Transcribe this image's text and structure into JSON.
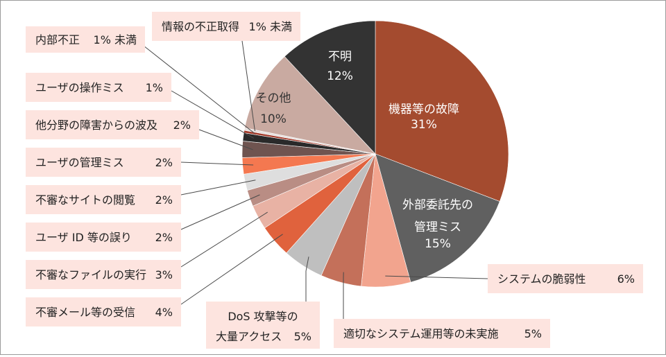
{
  "chart_data": {
    "type": "pie",
    "title": "",
    "start": "12 o'clock",
    "direction": "clockwise",
    "slices": [
      {
        "label": "機器等の故障",
        "value": 31,
        "value_label": "31%",
        "color": "#a44b2f",
        "label_placement": "inside",
        "text_color": "#ffffff"
      },
      {
        "label": "外部委託先の管理ミス",
        "value": 15,
        "value_label": "15%",
        "color": "#606060",
        "label_placement": "inside",
        "text_color": "#ffffff"
      },
      {
        "label": "システムの脆弱性",
        "value": 6,
        "value_label": "6%",
        "color": "#f2a48e",
        "label_placement": "callout"
      },
      {
        "label": "適切なシステム運用等の未実施",
        "value": 5,
        "value_label": "5%",
        "color": "#c4705a",
        "label_placement": "callout"
      },
      {
        "label": "DoS 攻撃等の大量アクセス",
        "value": 5,
        "value_label": "5%",
        "color": "#bfbfbf",
        "label_placement": "callout"
      },
      {
        "label": "不審メール等の受信",
        "value": 4,
        "value_label": "4%",
        "color": "#e0623d",
        "label_placement": "callout"
      },
      {
        "label": "不審なファイルの実行",
        "value": 3,
        "value_label": "3%",
        "color": "#e8b2a4",
        "label_placement": "callout"
      },
      {
        "label": "ユーザ ID 等の誤り",
        "value": 2,
        "value_label": "2%",
        "color": "#b98d84",
        "label_placement": "callout"
      },
      {
        "label": "不審なサイトの閲覧",
        "value": 2,
        "value_label": "2%",
        "color": "#dedede",
        "label_placement": "callout"
      },
      {
        "label": "ユーザの管理ミス",
        "value": 2,
        "value_label": "2%",
        "color": "#f47850",
        "label_placement": "callout"
      },
      {
        "label": "他分野の障害からの波及",
        "value": 2,
        "value_label": "2%",
        "color": "#6f5450",
        "label_placement": "callout"
      },
      {
        "label": "ユーザの操作ミス",
        "value": 1,
        "value_label": "1%",
        "color": "#2a2a2a",
        "label_placement": "callout"
      },
      {
        "label": "内部不正",
        "value": 0.3,
        "value_label": "1% 未満",
        "color": "#a33a2a",
        "label_placement": "callout"
      },
      {
        "label": "情報の不正取得",
        "value": 0.3,
        "value_label": "1% 未満",
        "color": "#e6e0de",
        "label_placement": "callout"
      },
      {
        "label": "その他",
        "value": 10,
        "value_label": "10%",
        "color": "#c9aaa1",
        "label_placement": "inside",
        "text_color": "#333333"
      },
      {
        "label": "不明",
        "value": 12,
        "value_label": "12%",
        "color": "#333333",
        "label_placement": "inside",
        "text_color": "#ffffff"
      }
    ],
    "callout_box_color": "#fde4df",
    "legend": "none"
  }
}
